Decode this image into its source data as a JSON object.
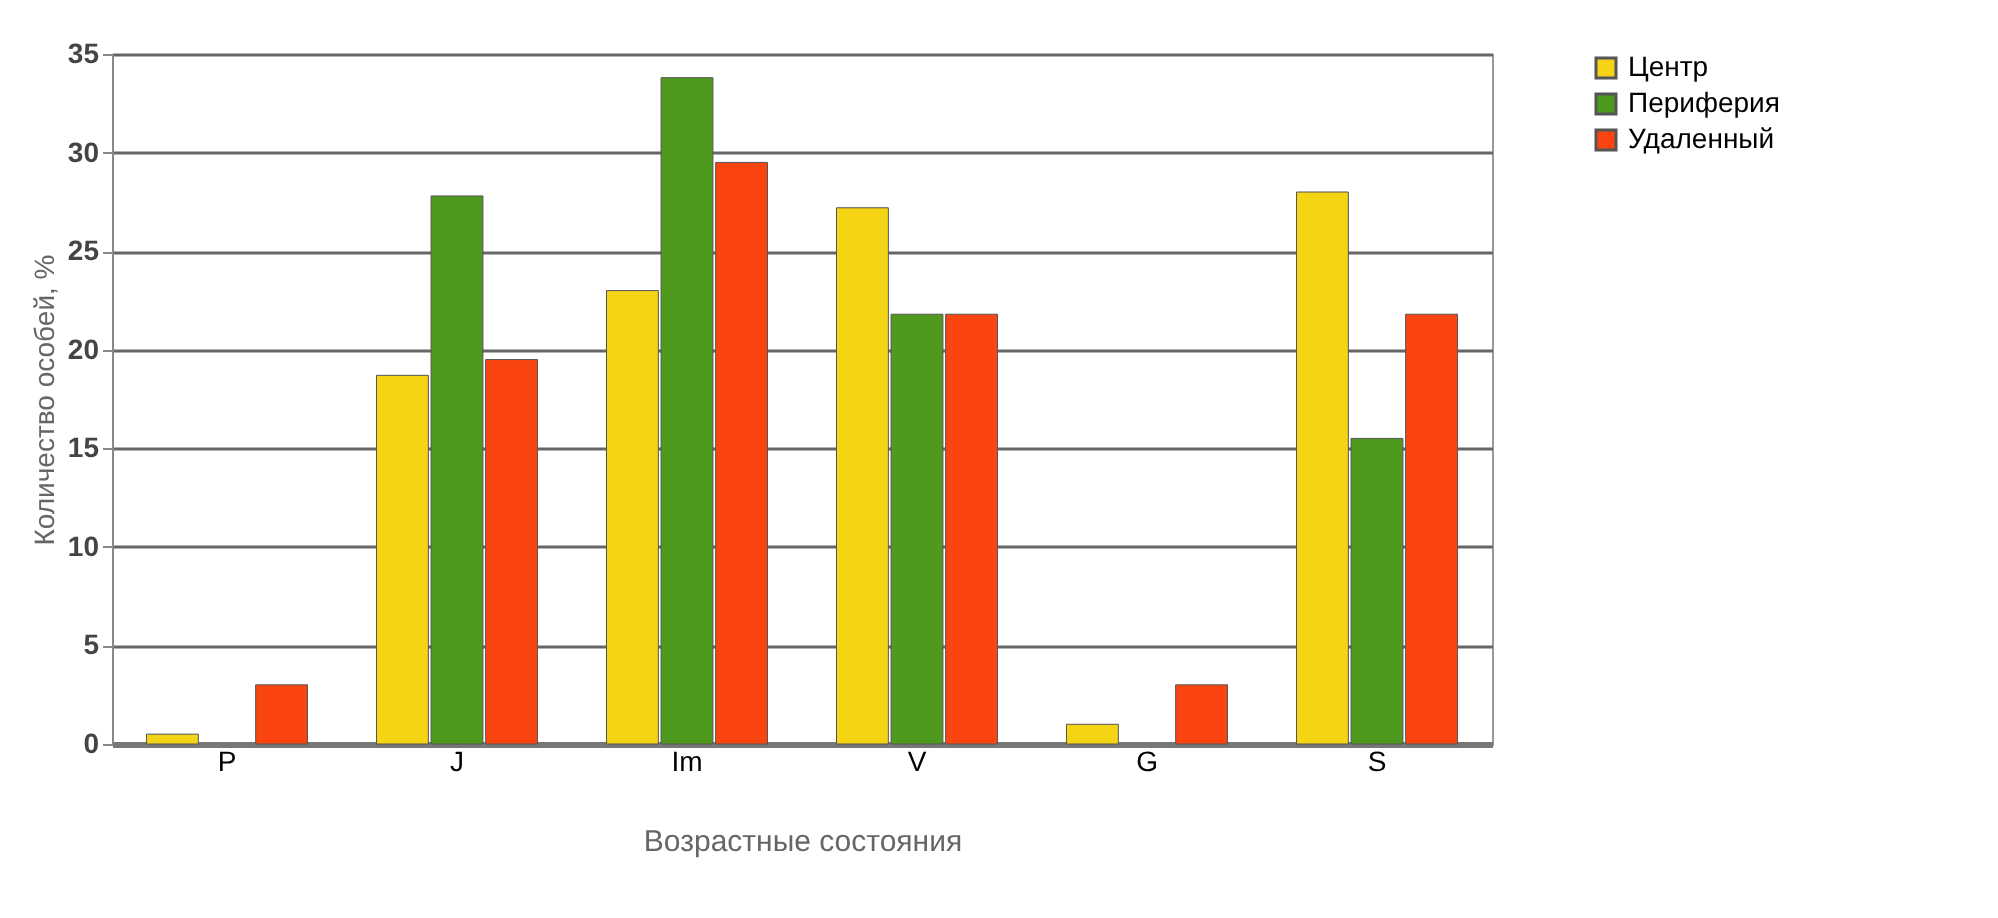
{
  "chart_data": {
    "type": "bar",
    "xlabel": "Возрастные состояния",
    "ylabel": "Количество особей, %",
    "categories": [
      "P",
      "J",
      "Im",
      "V",
      "G",
      "S"
    ],
    "series": [
      {
        "name": "Центр",
        "color": "#f5d416",
        "values": [
          0.5,
          18.7,
          23,
          27.2,
          1,
          28
        ]
      },
      {
        "name": "Периферия",
        "color": "#4f9a1e",
        "values": [
          null,
          27.8,
          33.8,
          21.8,
          null,
          15.5
        ]
      },
      {
        "name": "Удаленный",
        "color": "#fb4510",
        "values": [
          3,
          19.5,
          29.5,
          21.8,
          3,
          21.8
        ]
      }
    ],
    "ylim": [
      0,
      35
    ],
    "yticks": [
      0,
      5,
      10,
      15,
      20,
      25,
      30,
      35
    ],
    "grid": "y",
    "legend": "right"
  }
}
